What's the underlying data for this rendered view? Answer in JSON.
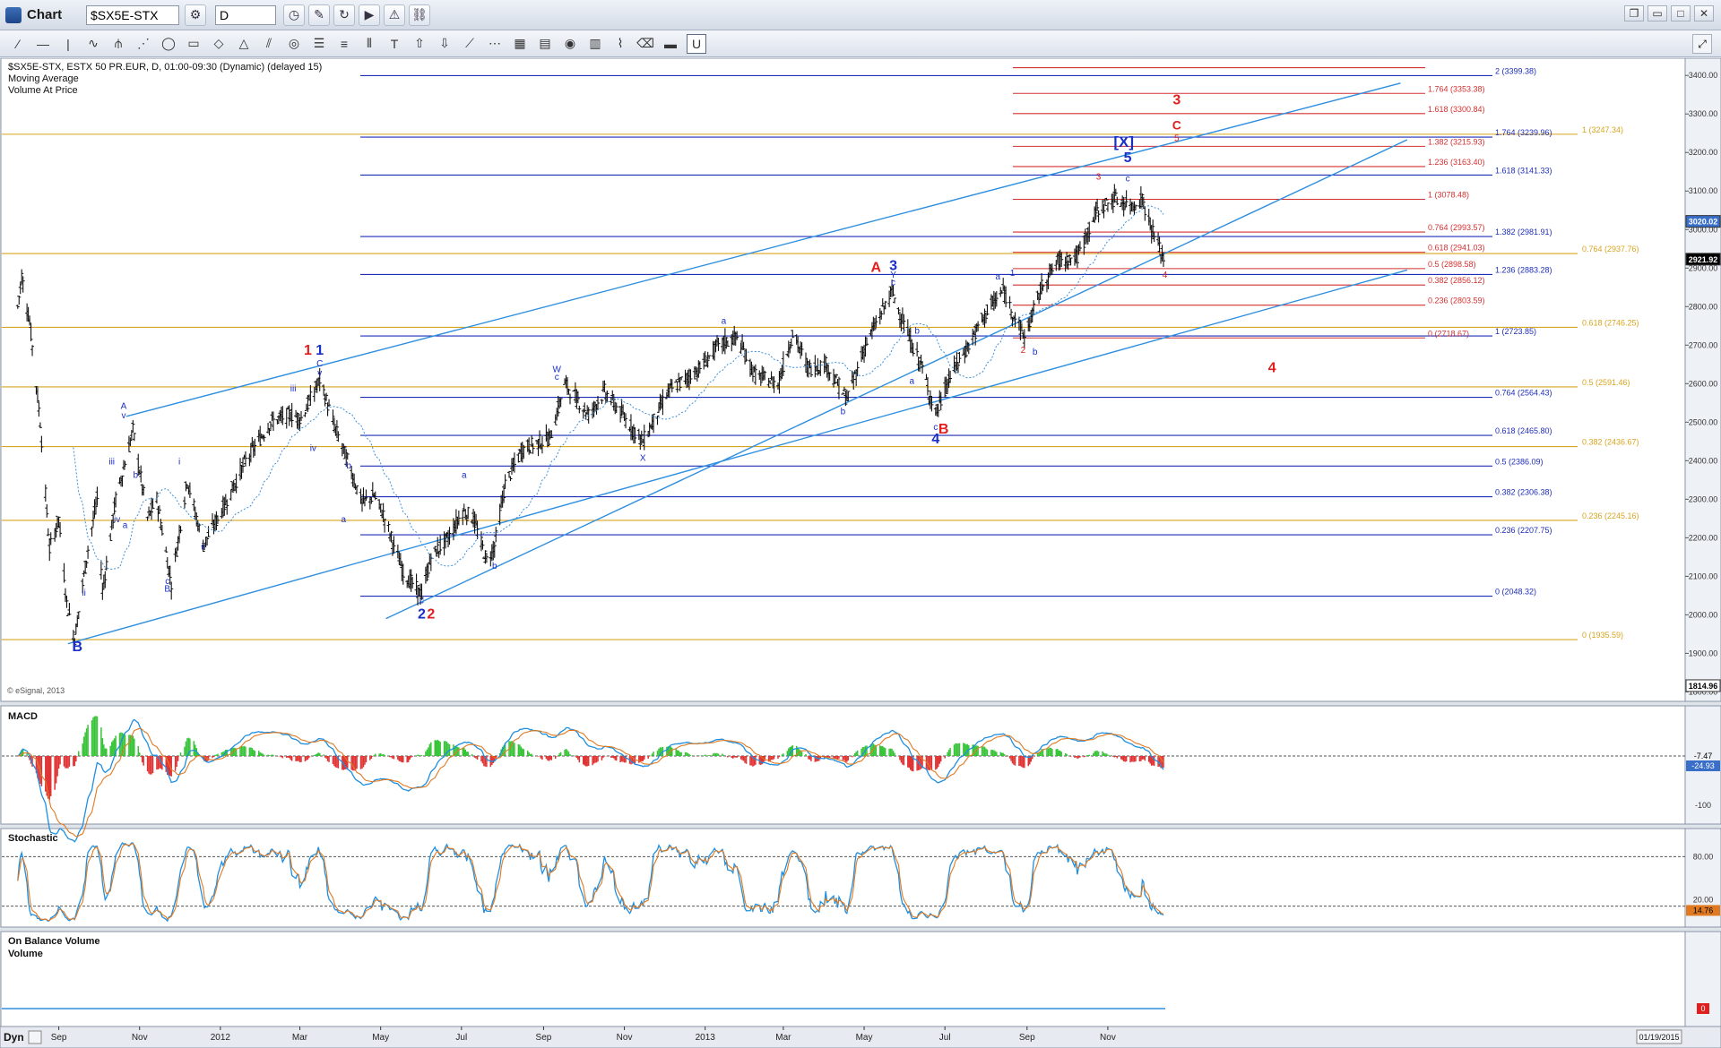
{
  "toolbar": {
    "title": "Chart",
    "symbol": "$SX5E-STX",
    "interval": "D",
    "dyn_label": "Dyn"
  },
  "chart_data": {
    "type": "ohlc",
    "header_lines": [
      "$SX5E-STX, ESTX 50 PR.EUR, D, 01:00-09:30 (Dynamic) (delayed 15)",
      "Moving Average",
      "Volume At Price"
    ],
    "copyright": "© eSignal, 2013",
    "date_range_label": "01/19/2015",
    "x_ticks": [
      "Sep",
      "Nov",
      "2012",
      "Mar",
      "May",
      "Jul",
      "Sep",
      "Nov",
      "2013",
      "Mar",
      "May",
      "Jul",
      "Sep",
      "Nov"
    ],
    "y_ticks": [
      3400,
      3300,
      3200,
      3100,
      3000,
      2900,
      2800,
      2700,
      2600,
      2500,
      2400,
      2300,
      2200,
      2100,
      2000,
      1900,
      1800
    ],
    "ylim": [
      1780,
      3440
    ],
    "price_boxes": [
      {
        "label": "3020.02",
        "value": 3020.02,
        "color": "#3a6fc9"
      },
      {
        "label": "2921.92",
        "value": 2921.92,
        "color": "#000000"
      },
      {
        "label": "1814.96",
        "value": 1814.96,
        "color": "#ffffff"
      }
    ],
    "price_anchor_points": [
      {
        "date": "2011-08-01",
        "price": 2800
      },
      {
        "date": "2011-08-04",
        "price": 2880
      },
      {
        "date": "2011-08-10",
        "price": 2760
      },
      {
        "date": "2011-08-18",
        "price": 2500
      },
      {
        "date": "2011-08-25",
        "price": 2170
      },
      {
        "date": "2011-09-01",
        "price": 2250
      },
      {
        "date": "2011-09-07",
        "price": 2030
      },
      {
        "date": "2011-09-13",
        "price": 1940
      },
      {
        "date": "2011-09-23",
        "price": 2170
      },
      {
        "date": "2011-09-30",
        "price": 2300
      },
      {
        "date": "2011-10-04",
        "price": 2060
      },
      {
        "date": "2011-10-14",
        "price": 2300
      },
      {
        "date": "2011-10-20",
        "price": 2380
      },
      {
        "date": "2011-10-27",
        "price": 2480
      },
      {
        "date": "2011-11-07",
        "price": 2250
      },
      {
        "date": "2011-11-14",
        "price": 2300
      },
      {
        "date": "2011-11-25",
        "price": 2080
      },
      {
        "date": "2011-12-07",
        "price": 2350
      },
      {
        "date": "2011-12-19",
        "price": 2180
      },
      {
        "date": "2012-01-05",
        "price": 2290
      },
      {
        "date": "2012-01-20",
        "price": 2400
      },
      {
        "date": "2012-02-08",
        "price": 2500
      },
      {
        "date": "2012-02-23",
        "price": 2520
      },
      {
        "date": "2012-03-02",
        "price": 2510
      },
      {
        "date": "2012-03-16",
        "price": 2610
      },
      {
        "date": "2012-03-28",
        "price": 2480
      },
      {
        "date": "2012-04-06",
        "price": 2400
      },
      {
        "date": "2012-04-17",
        "price": 2290
      },
      {
        "date": "2012-04-26",
        "price": 2310
      },
      {
        "date": "2012-05-03",
        "price": 2260
      },
      {
        "date": "2012-05-18",
        "price": 2110
      },
      {
        "date": "2012-06-01",
        "price": 2050
      },
      {
        "date": "2012-06-08",
        "price": 2150
      },
      {
        "date": "2012-06-21",
        "price": 2200
      },
      {
        "date": "2012-07-02",
        "price": 2270
      },
      {
        "date": "2012-07-10",
        "price": 2250
      },
      {
        "date": "2012-07-20",
        "price": 2140
      },
      {
        "date": "2012-07-26",
        "price": 2180
      },
      {
        "date": "2012-08-03",
        "price": 2340
      },
      {
        "date": "2012-08-16",
        "price": 2430
      },
      {
        "date": "2012-09-06",
        "price": 2460
      },
      {
        "date": "2012-09-17",
        "price": 2600
      },
      {
        "date": "2012-10-05",
        "price": 2520
      },
      {
        "date": "2012-10-17",
        "price": 2580
      },
      {
        "date": "2012-11-08",
        "price": 2480
      },
      {
        "date": "2012-11-15",
        "price": 2450
      },
      {
        "date": "2012-12-04",
        "price": 2580
      },
      {
        "date": "2012-12-28",
        "price": 2640
      },
      {
        "date": "2013-01-11",
        "price": 2700
      },
      {
        "date": "2013-01-25",
        "price": 2720
      },
      {
        "date": "2013-02-08",
        "price": 2620
      },
      {
        "date": "2013-02-25",
        "price": 2600
      },
      {
        "date": "2013-03-08",
        "price": 2730
      },
      {
        "date": "2013-03-20",
        "price": 2640
      },
      {
        "date": "2013-04-02",
        "price": 2650
      },
      {
        "date": "2013-04-18",
        "price": 2560
      },
      {
        "date": "2013-05-02",
        "price": 2700
      },
      {
        "date": "2013-05-22",
        "price": 2840
      },
      {
        "date": "2013-06-06",
        "price": 2700
      },
      {
        "date": "2013-06-13",
        "price": 2650
      },
      {
        "date": "2013-06-24",
        "price": 2520
      },
      {
        "date": "2013-07-05",
        "price": 2620
      },
      {
        "date": "2013-07-19",
        "price": 2700
      },
      {
        "date": "2013-08-02",
        "price": 2790
      },
      {
        "date": "2013-08-14",
        "price": 2840
      },
      {
        "date": "2013-08-30",
        "price": 2720
      },
      {
        "date": "2013-09-13",
        "price": 2860
      },
      {
        "date": "2013-09-25",
        "price": 2920
      },
      {
        "date": "2013-10-09",
        "price": 2930
      },
      {
        "date": "2013-10-24",
        "price": 3050
      },
      {
        "date": "2013-11-06",
        "price": 3080
      },
      {
        "date": "2013-11-18",
        "price": 3060
      },
      {
        "date": "2013-11-27",
        "price": 3080
      },
      {
        "date": "2013-12-03",
        "price": 3010
      },
      {
        "date": "2013-12-09",
        "price": 2960
      },
      {
        "date": "2013-12-13",
        "price": 2922
      }
    ],
    "fib_levels_blue": [
      {
        "ratio": "2",
        "value": 3399.38
      },
      {
        "ratio": "1.764",
        "value": 3239.96
      },
      {
        "ratio": "1.618",
        "value": 3141.33
      },
      {
        "ratio": "1.382",
        "value": 2981.91
      },
      {
        "ratio": "1.236",
        "value": 2883.28
      },
      {
        "ratio": "1",
        "value": 2723.85
      },
      {
        "ratio": "0.764",
        "value": 2564.43
      },
      {
        "ratio": "0.618",
        "value": 2465.8
      },
      {
        "ratio": "0.5",
        "value": 2386.09
      },
      {
        "ratio": "0.382",
        "value": 2306.38
      },
      {
        "ratio": "0.236",
        "value": 2207.75
      },
      {
        "ratio": "0",
        "value": 2048.32
      }
    ],
    "fib_levels_red": [
      {
        "ratio": "1.764",
        "value": 3353.38
      },
      {
        "ratio": "1.618",
        "value": 3300.84
      },
      {
        "ratio": "1.382",
        "value": 3215.93
      },
      {
        "ratio": "1.236",
        "value": 3163.4
      },
      {
        "ratio": "1",
        "value": 3078.48
      },
      {
        "ratio": "0.764",
        "value": 2993.57
      },
      {
        "ratio": "0.618",
        "value": 2941.03
      },
      {
        "ratio": "0.5",
        "value": 2898.58
      },
      {
        "ratio": "0.382",
        "value": 2856.12
      },
      {
        "ratio": "0.236",
        "value": 2803.59
      },
      {
        "ratio": "0",
        "value": 2718.67
      }
    ],
    "fib_levels_gold": [
      {
        "ratio": "1",
        "value": 3247.34
      },
      {
        "ratio": "0.764",
        "value": 2937.76
      },
      {
        "ratio": "0.618",
        "value": 2746.25
      },
      {
        "ratio": "0.5",
        "value": 2591.46
      },
      {
        "ratio": "0.382",
        "value": 2436.67
      },
      {
        "ratio": "0.236",
        "value": 2245.16
      },
      {
        "ratio": "0",
        "value": 1935.59
      }
    ],
    "trendlines": [
      {
        "from": {
          "date": "2011-10-22",
          "price": 2515
        },
        "to": {
          "date": "2014-06-10",
          "price": 3380
        }
      },
      {
        "from": {
          "date": "2011-09-08",
          "price": 1925
        },
        "to": {
          "date": "2014-06-15",
          "price": 2895
        }
      },
      {
        "from": {
          "date": "2012-05-05",
          "price": 1990
        },
        "to": {
          "date": "2014-06-15",
          "price": 3233
        }
      }
    ],
    "wave_labels": [
      {
        "text": "B",
        "date": "2011-09-15",
        "price": 1905,
        "color": "blue",
        "size": "lg"
      },
      {
        "text": "A",
        "date": "2011-10-20",
        "price": 2535,
        "color": "blue",
        "size": "sm"
      },
      {
        "text": "v",
        "date": "2011-10-20",
        "price": 2510,
        "color": "blue",
        "size": "sm"
      },
      {
        "text": "iii",
        "date": "2011-10-11",
        "price": 2390,
        "color": "blue",
        "size": "sm"
      },
      {
        "text": "iv",
        "date": "2011-10-15",
        "price": 2240,
        "color": "blue",
        "size": "sm"
      },
      {
        "text": "a",
        "date": "2011-10-21",
        "price": 2225,
        "color": "blue",
        "size": "sm"
      },
      {
        "text": "b",
        "date": "2011-10-29",
        "price": 2355,
        "color": "blue",
        "size": "sm"
      },
      {
        "text": "ii",
        "date": "2011-09-20",
        "price": 2050,
        "color": "blue",
        "size": "sm"
      },
      {
        "text": "c",
        "date": "2011-11-22",
        "price": 2080,
        "color": "blue",
        "size": "sm"
      },
      {
        "text": "B",
        "date": "2011-11-22",
        "price": 2060,
        "color": "blue",
        "size": "sm"
      },
      {
        "text": "i",
        "date": "2011-12-01",
        "price": 2390,
        "color": "blue",
        "size": "sm"
      },
      {
        "text": "ii",
        "date": "2011-12-19",
        "price": 2170,
        "color": "blue",
        "size": "sm"
      },
      {
        "text": "iii",
        "date": "2012-02-25",
        "price": 2580,
        "color": "blue",
        "size": "sm"
      },
      {
        "text": "1",
        "date": "2012-03-07",
        "price": 2675,
        "color": "red",
        "size": "lg"
      },
      {
        "text": "1",
        "date": "2012-03-16",
        "price": 2675,
        "color": "blue",
        "size": "lg"
      },
      {
        "text": "C",
        "date": "2012-03-16",
        "price": 2645,
        "color": "blue",
        "size": "sm"
      },
      {
        "text": "v",
        "date": "2012-03-16",
        "price": 2620,
        "color": "blue",
        "size": "sm"
      },
      {
        "text": "iv",
        "date": "2012-03-11",
        "price": 2425,
        "color": "blue",
        "size": "sm"
      },
      {
        "text": "b",
        "date": "2012-04-07",
        "price": 2380,
        "color": "blue",
        "size": "sm"
      },
      {
        "text": "a",
        "date": "2012-04-03",
        "price": 2240,
        "color": "blue",
        "size": "sm"
      },
      {
        "text": "c",
        "date": "2012-06-01",
        "price": 2030,
        "color": "blue",
        "size": "sm"
      },
      {
        "text": "2",
        "date": "2012-06-01",
        "price": 1990,
        "color": "blue",
        "size": "lg"
      },
      {
        "text": "2",
        "date": "2012-06-08",
        "price": 1990,
        "color": "red",
        "size": "lg"
      },
      {
        "text": "a",
        "date": "2012-07-03",
        "price": 2355,
        "color": "blue",
        "size": "sm"
      },
      {
        "text": "b",
        "date": "2012-07-26",
        "price": 2120,
        "color": "blue",
        "size": "sm"
      },
      {
        "text": "W",
        "date": "2012-09-11",
        "price": 2630,
        "color": "blue",
        "size": "sm"
      },
      {
        "text": "c",
        "date": "2012-09-11",
        "price": 2610,
        "color": "blue",
        "size": "sm"
      },
      {
        "text": "X",
        "date": "2012-11-15",
        "price": 2400,
        "color": "blue",
        "size": "sm"
      },
      {
        "text": "a",
        "date": "2013-01-15",
        "price": 2755,
        "color": "blue",
        "size": "sm"
      },
      {
        "text": "b",
        "date": "2013-04-15",
        "price": 2520,
        "color": "blue",
        "size": "sm"
      },
      {
        "text": "A",
        "date": "2013-05-10",
        "price": 2890,
        "color": "red",
        "size": "lg"
      },
      {
        "text": "3",
        "date": "2013-05-23",
        "price": 2895,
        "color": "blue",
        "size": "lg"
      },
      {
        "text": "Y",
        "date": "2013-05-23",
        "price": 2875,
        "color": "blue",
        "size": "sm"
      },
      {
        "text": "c",
        "date": "2013-05-23",
        "price": 2855,
        "color": "blue",
        "size": "sm"
      },
      {
        "text": "b",
        "date": "2013-06-10",
        "price": 2730,
        "color": "blue",
        "size": "sm"
      },
      {
        "text": "a",
        "date": "2013-06-06",
        "price": 2600,
        "color": "blue",
        "size": "sm"
      },
      {
        "text": "c",
        "date": "2013-06-24",
        "price": 2480,
        "color": "blue",
        "size": "sm"
      },
      {
        "text": "4",
        "date": "2013-06-24",
        "price": 2445,
        "color": "blue",
        "size": "lg"
      },
      {
        "text": "B",
        "date": "2013-06-30",
        "price": 2470,
        "color": "red",
        "size": "lg"
      },
      {
        "text": "a",
        "date": "2013-08-10",
        "price": 2870,
        "color": "blue",
        "size": "sm"
      },
      {
        "text": "1",
        "date": "2013-08-21",
        "price": 2880,
        "color": "blue",
        "size": "sm"
      },
      {
        "text": "2",
        "date": "2013-08-29",
        "price": 2680,
        "color": "red",
        "size": "sm"
      },
      {
        "text": "b",
        "date": "2013-09-07",
        "price": 2675,
        "color": "blue",
        "size": "sm"
      },
      {
        "text": "3",
        "date": "2013-10-25",
        "price": 3130,
        "color": "red",
        "size": "sm"
      },
      {
        "text": "c",
        "date": "2013-11-16",
        "price": 3125,
        "color": "blue",
        "size": "sm"
      },
      {
        "text": "5",
        "date": "2013-11-16",
        "price": 3175,
        "color": "blue",
        "size": "lg"
      },
      {
        "text": "[X]",
        "date": "2013-11-13",
        "price": 3215,
        "color": "blue",
        "size": "xl"
      },
      {
        "text": "3",
        "date": "2013-12-23",
        "price": 3325,
        "color": "red",
        "size": "lg"
      },
      {
        "text": "C",
        "date": "2013-12-23",
        "price": 3260,
        "color": "red",
        "size": "md"
      },
      {
        "text": "5",
        "date": "2013-12-23",
        "price": 3230,
        "color": "red",
        "size": "sm"
      },
      {
        "text": "4",
        "date": "2013-12-14",
        "price": 2875,
        "color": "red",
        "size": "sm"
      },
      {
        "text": "4",
        "date": "2014-03-05",
        "price": 2630,
        "color": "red",
        "size": "lg"
      }
    ],
    "panels": [
      {
        "name": "MACD",
        "y_labels": [
          "-7.47",
          "-24.93",
          "-100"
        ]
      },
      {
        "name": "Stochastic",
        "y_labels": [
          "80.00",
          "20.00",
          "14.76"
        ]
      },
      {
        "name": "On Balance Volume",
        "sub": "Volume",
        "y_labels": [
          "0"
        ]
      }
    ]
  }
}
